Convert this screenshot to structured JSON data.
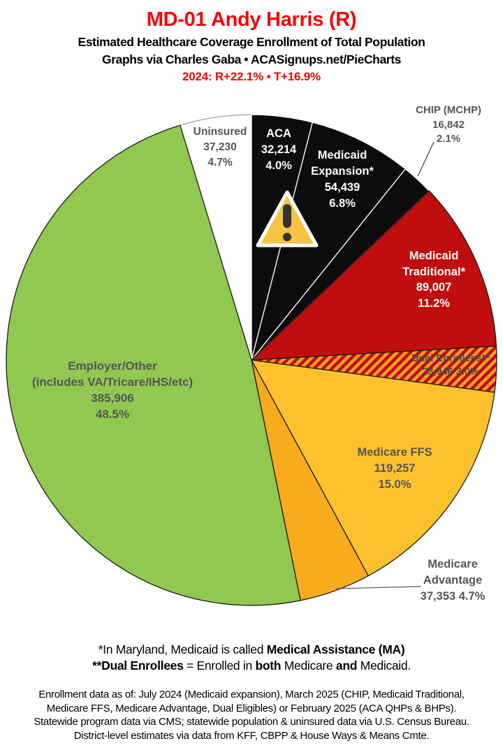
{
  "header": {
    "title": "MD-01 Andy Harris (R)",
    "subtitle": "Estimated Healthcare Coverage Enrollment of Total Population",
    "attribution": "Graphs via Charles Gaba   •   ACASignups.net/PieCharts",
    "partisan_lean": "2024: R+22.1%  •  T+16.9%",
    "title_color": "#f50505"
  },
  "chart_data": {
    "type": "pie",
    "title": "MD-01 Andy Harris (R) — Estimated Healthcare Coverage Enrollment of Total Population",
    "direction": "clockwise from 12 o'clock",
    "total_pct": 100.0,
    "hatch": {
      "base": "#c00d0d",
      "stripe": "#f2a127"
    },
    "warning_icon": {
      "fill": "#f7c343",
      "mark": "#333333",
      "outline": "#ffffff"
    },
    "slices": [
      {
        "id": "aca",
        "name": "ACA",
        "value": "32,214",
        "pct": 4.0,
        "color": "#0c0c0c",
        "stroke": "#ffffff",
        "label_color": "#ffffff",
        "lines": [
          "ACA",
          "32,214",
          "4.0%"
        ]
      },
      {
        "id": "medicaid-expansion",
        "name": "Medicaid Expansion*",
        "value": "54,439",
        "pct": 6.8,
        "color": "#0c0c0c",
        "stroke": "#ffffff",
        "label_color": "#ffffff",
        "lines": [
          "Medicaid",
          "Expansion*",
          "54,439",
          "6.8%"
        ]
      },
      {
        "id": "chip",
        "name": "CHIP (MCHP)",
        "value": "16,842",
        "pct": 2.1,
        "color": "#0c0c0c",
        "stroke": "#ffffff",
        "label_color": "#565656",
        "lines": [
          "CHIP (MCHP)",
          "16,842",
          "2.1%"
        ]
      },
      {
        "id": "medicaid-traditional",
        "name": "Medicaid Traditional*",
        "value": "89,007",
        "pct": 11.2,
        "color": "#c00d0d",
        "stroke": "#1c1c1c",
        "label_color": "#ffffff",
        "lines": [
          "Medicaid",
          "Traditional*",
          "89,007",
          "11.2%"
        ]
      },
      {
        "id": "dual-enrollees",
        "name": "Dual Enrollees**",
        "value": "23,946",
        "pct": 3.0,
        "color": "#c00d0d",
        "hatch": true,
        "stroke": "#1c1c1c",
        "label_color": "#4a4a4a",
        "lines": [
          "Dual Enrollees**",
          "23,946 3.0%"
        ]
      },
      {
        "id": "medicare-ffs",
        "name": "Medicare FFS",
        "value": "119,257",
        "pct": 15.0,
        "color": "#fdc12e",
        "stroke": "#1c1c1c",
        "label_color": "#565656",
        "lines": [
          "Medicare FFS",
          "119,257",
          "15.0%"
        ]
      },
      {
        "id": "medicare-advantage",
        "name": "Medicare Advantage",
        "value": "37,353",
        "pct": 4.7,
        "color": "#f8ab1c",
        "stroke": "#1c1c1c",
        "label_color": "#565656",
        "lines": [
          "Medicare",
          "Advantage",
          "37,353 4.7%"
        ]
      },
      {
        "id": "employer-other",
        "name": "Employer/Other (includes VA/Tricare/IHS/etc)",
        "value": "385,906",
        "pct": 48.5,
        "color": "#90c850",
        "stroke": "#1c1c1c",
        "label_color": "#565656",
        "lines": [
          "Employer/Other",
          "(includes VA/Tricare/IHS/etc)",
          "385,906",
          "48.5%"
        ]
      },
      {
        "id": "uninsured",
        "name": "Uninsured",
        "value": "37,230",
        "pct": 4.7,
        "color": "#ffffff",
        "stroke": "#9e9e9e",
        "label_color": "#565656",
        "lines": [
          "Uninsured",
          "37,230",
          "4.7%"
        ]
      }
    ]
  },
  "footnotes": {
    "line1_regular": "*In Maryland, Medicaid is called ",
    "line1_bold": "Medical Assistance (MA)",
    "line2_bold1": "**Dual Enrollees",
    "line2_regular1": " = Enrolled in ",
    "line2_bold2": "both",
    "line2_regular2": " Medicare ",
    "line2_bold3": "and",
    "line2_regular3": " Medicaid.",
    "source_lines": [
      "Enrollment data as of: July 2024 (Medicaid expansion), March 2025 (CHIP, Medicaid Traditional,",
      "Medicare FFS, Medicare Advantage, Dual Eligibles) or February 2025 (ACA QHPs & BHPs).",
      "Statewide program data via CMS; statewide population & uninsured data via U.S. Census Bureau.",
      "District-level estimates via data from KFF, CBPP & House Ways & Means Cmte."
    ]
  }
}
